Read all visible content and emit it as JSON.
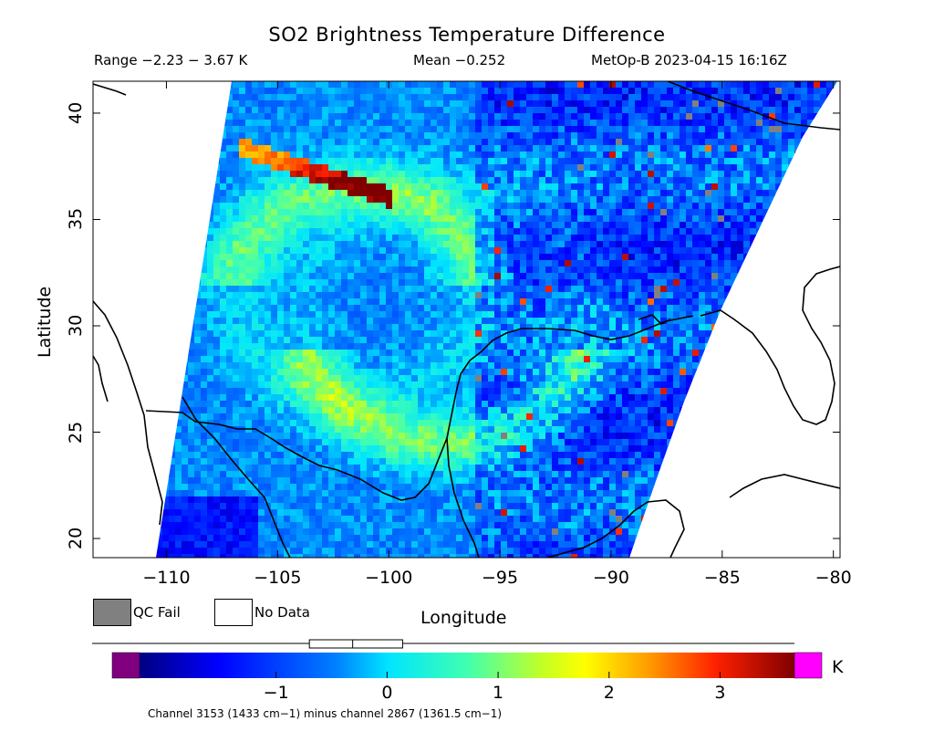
{
  "header": {
    "title": "SO2 Brightness Temperature Difference",
    "range_text": "Range −2.23 − 3.67 K",
    "mean_text": "Mean −0.252",
    "satellite_time": "MetOp-B 2023-04-15 16:16Z"
  },
  "axes": {
    "x_title": "Longitude",
    "y_title": "Latitude",
    "x_ticks": [
      -110,
      -105,
      -100,
      -95,
      -90,
      -85,
      -80
    ],
    "x_tick_labels": [
      "−110",
      "−105",
      "−100",
      "−95",
      "−90",
      "−85",
      "−80"
    ],
    "y_ticks": [
      20,
      25,
      30,
      35,
      40
    ],
    "y_tick_labels": [
      "20",
      "25",
      "30",
      "35",
      "40"
    ],
    "x_range": [
      -113.3,
      -79.7
    ],
    "y_range": [
      19.1,
      41.5
    ]
  },
  "legend": {
    "qc_fail_label": "QC Fail",
    "no_data_label": "No Data",
    "qc_fail_color": "#808080",
    "no_data_color": "#ffffff"
  },
  "colorbar": {
    "ticks": [
      -1,
      0,
      1,
      2,
      3
    ],
    "tick_labels": [
      "−1",
      "0",
      "1",
      "2",
      "3"
    ],
    "unit": "K",
    "value_range": [
      -2.23,
      3.67
    ],
    "under_color": "#800080",
    "over_color": "#ff00ff",
    "boxplot": {
      "min": -2.23,
      "q1": -0.7,
      "median": -0.31,
      "q3": 0.14,
      "max": 3.67
    }
  },
  "footnote": "Channel 3153 (1433 cm−1) minus channel 2867 (1361.5 cm−1)",
  "chart_data": {
    "type": "heatmap",
    "title": "SO2 Brightness Temperature Difference",
    "xlabel": "Longitude",
    "ylabel": "Latitude",
    "xlim": [
      -113.3,
      -79.7
    ],
    "ylim": [
      19.1,
      41.5
    ],
    "value_range": [
      -2.23,
      3.67
    ],
    "mean": -0.252,
    "unit": "K",
    "swath_edges": {
      "west": [
        [
          -108.1,
          41.5
        ],
        [
          -111.0,
          19.1
        ]
      ],
      "east": [
        [
          -80.0,
          41.5
        ],
        [
          -82.5,
          38.0
        ],
        [
          -85.0,
          32.5
        ],
        [
          -87.0,
          27.5
        ],
        [
          -88.5,
          23.0
        ],
        [
          -89.5,
          19.1
        ]
      ]
    },
    "features": [
      {
        "name": "high band north",
        "lon": [
          -106.5,
          -100.0
        ],
        "lat": [
          36.0,
          38.5
        ],
        "value": 3.2
      },
      {
        "name": "plume arc south",
        "lon": [
          -106.0,
          -99.0
        ],
        "lat": [
          23.0,
          27.0
        ],
        "value": 1.4
      },
      {
        "name": "plume arc north",
        "lon": [
          -108.0,
          -98.0
        ],
        "lat": [
          34.0,
          40.0
        ],
        "value": 1.2
      }
    ],
    "grid": false
  }
}
